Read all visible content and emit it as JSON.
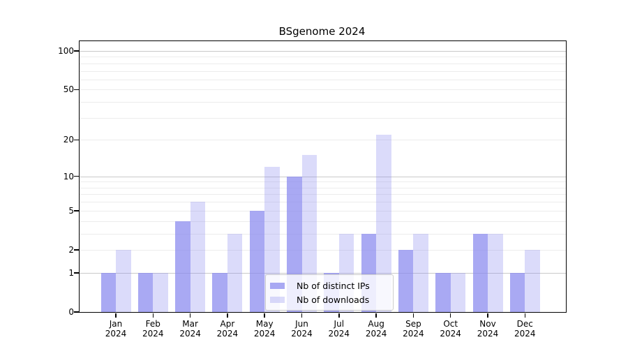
{
  "title": "BSgenome 2024",
  "chart_data": {
    "type": "bar",
    "title": "BSgenome 2024",
    "categories": [
      "Jan",
      "Feb",
      "Mar",
      "Apr",
      "May",
      "Jun",
      "Jul",
      "Aug",
      "Sep",
      "Oct",
      "Nov",
      "Dec"
    ],
    "year_label": "2024",
    "series": [
      {
        "name": "Nb of distinct IPs",
        "color": "rgba(136,136,238,0.72)",
        "values": [
          1,
          1,
          4,
          1,
          5,
          10,
          1,
          3,
          2,
          1,
          3,
          1
        ]
      },
      {
        "name": "Nb of downloads",
        "color": "rgba(136,136,238,0.30)",
        "values": [
          2,
          1,
          6,
          3,
          12,
          15,
          3,
          22,
          3,
          1,
          3,
          2
        ]
      }
    ],
    "y_scale": "log10(value+1)",
    "ylim": [
      0,
      100
    ],
    "y_ticks": [
      100,
      50,
      20,
      10,
      5,
      2,
      1,
      0
    ],
    "gridlines_major": [
      1,
      10,
      100
    ],
    "gridlines_minor": [
      2,
      3,
      4,
      5,
      6,
      7,
      8,
      9,
      20,
      30,
      40,
      50,
      60,
      70,
      80,
      90
    ],
    "grid": "on",
    "legend_position": "inside-bottom-center",
    "xlabel": "",
    "ylabel": ""
  },
  "colors": {
    "bar_base": "#8888ee",
    "grid_major": "#c9c9c9",
    "grid_minor": "#ececec",
    "axis": "#000000",
    "legend_border": "#cccccc",
    "background": "#ffffff"
  }
}
